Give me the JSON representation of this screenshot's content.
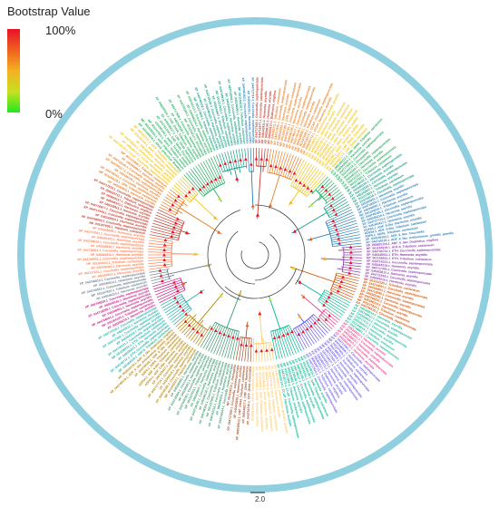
{
  "legend": {
    "title": "Bootstrap Value",
    "max_label": "100%",
    "min_label": "0%",
    "gradient_colors": [
      "#e8102a",
      "#f0601e",
      "#f5b020",
      "#c8e020",
      "#20e820"
    ]
  },
  "ring_color": "#8fcfdf",
  "scale_bar_label": "2.0",
  "clade_colors": [
    "#c0392b",
    "#e67e22",
    "#f1c40f",
    "#27ae60",
    "#16a085",
    "#2980b9",
    "#8e44ad",
    "#d35400",
    "#1abc9c",
    "#e84393",
    "#6c5ce7",
    "#00b894",
    "#fdcb6e",
    "#a0522d",
    "#3d9970",
    "#b8860b",
    "#20b2aa",
    "#c71585",
    "#708090",
    "#ff7f50"
  ],
  "visible_leaf_labels": [
    "XP_044717543.1_Coccinella_septempunctata",
    "XP_044716977.1_Coccinella_septempunctata",
    "XP_045343911.1_Harmonia_axyridis",
    "XP_045346101.1_Harmonia_axyridis",
    "XP_050503117.1_Diabrotica_virgifera",
    "XP_008193711.1_Tribolium_castaneum",
    "XP_044717910.1_Coccinella_septempunctata",
    "XP_045343915.1_Harmonia_axyridis",
    "NP_001164108.1_CPR_Tribolium_castaneum",
    "XP_044745161.1_Coccinella_septempunctata",
    "XP_045346105.1_Harmonia_axyridis",
    "XP_044748117.1_Coccinella_septempunctata",
    "XP_044718140.1_Coccinella_septempunctata",
    "XP_045343992.1_Harmonia_axyridis",
    "NP_001107848.1_Tribolium_castaneum",
    "XP_044718170.1_CCAP_Coccinella_septempunctata",
    "XP_045345714.1_CCAP_Harmonia_axyridis",
    "XP_044749551.1_Anthonomus_grandis_grandis",
    "XP_045343014.1_Harmonia_axyridis",
    "NP_001153720.1_AKH_Tribolium_castaneum",
    "NP_001153721.1_AKH_Tribolium_castaneum",
    "NP_001164016.1_AKH2_precursor_Bombyx",
    "NP_001034516.1_AKH_Tribolium_castaneum",
    "NP_001107915.1_AKH1_Tenebrio_molitor",
    "UXO96194.1_AKH1_Tenebrio_molitor",
    "XP_044751310.1_CRF_DH44_Coccinella",
    "XP_045346217.1_CRF_DH44_Harmonia",
    "XP_008195512.1_CRF_DH44_Tribolium_castaneum",
    "XP_045343926.1_Harmonia_axyridis",
    "XP_044717930.1_Coccinella_septempunctata",
    "NP_001104212.1_Drosophila",
    "XP_044745164.1_Coccinella_septempunctata",
    "XP_045346314.1_Harmonia_axyridis",
    "XP_044742113.1_Coccinella_septempunctata",
    "NP_001137903.1_Tribolium_castaneum",
    "XP_044748102.1_Coccinella_septempunctata",
    "XP_045346120.1_Harmonia_axyridis",
    "XP_044718182.1_Coccinella_septempunctata",
    "XP_045343947.1_Harmonia_axyridis",
    "NP_001107823.1_Tribolium_castaneum",
    "XP_044744918.1_Coccinella_septempunctata",
    "XP_045345931.1_Harmonia_axyridis",
    "XP_044718304.1_Coccinella_septempunctata",
    "XP_045346091.1_Harmonia_axyridis",
    "NP_001164210.1_Tribolium_castaneum",
    "XP_044746183.1_Coccinella_septempunctata",
    "XP_045345219.1_Harmonia_axyridis",
    "XP_044717714.1_Coccinella_septempunctata",
    "XP_045343417.1_Harmonia_axyridis",
    "ADF64.1_ADF_6-like_Harmonia_axyridis",
    "ADF64.1_ADF_6-like_Tribolium_castaneum",
    "ADF6.1_ADF6_Tribolium_castaneum",
    "XP_044749102.1_ADF_6_like_Coccinella",
    "XP_044749118.1_ADF_6_like_Anthonomus_grandis_grandis",
    "XP_050502119.1_ADF_6_like_Diabrotica_virgifera",
    "NP_001164319.1_ADF-6_Tribolium_castaneum",
    "XP_044749712.1_ETH_Coccinella_septempunctata",
    "XP_045345011.1_ETH_Harmonia_axyridis",
    "NP_001106912.1_ETH_Tribolium_castaneum",
    "XP_044716121.1_Coccinella_septempunctata",
    "XP_045344218.1_Harmonia_axyridis",
    "XP_044717342.1_Coccinella_septempunctata",
    "XP_045343612.1_Harmonia_axyridis"
  ],
  "bottom_leaf_labels": [
    "XP_044711918.1_Coccinella_septempunctata",
    "XP_045345210.1_Harmonia_axyridis",
    "NP_001164125.1_Tribolium_castaneum",
    "XP_044744001.1_Coccinella_septempunctata",
    "XP_045346901.1_Harmonia_axyridis",
    "XP_044718290.1_Coccinella_septempunctata",
    "XP_045343181.1_Harmonia_axyridis",
    "XP_044749220.1_Coccinella_septempunctata",
    "XP_045346313.1_Harmonia_axyridis",
    "NP_001107810.1_Tribolium_castaneum",
    "XP_044745510.1_Coccinella_septempunctata",
    "XP_045345514.1_Harmonia_axyridis",
    "XP_044748810.1_Coccinella_septempunctata",
    "XP_045343813.1_Harmonia_axyridis",
    "XP_044717211.1_Coccinella_septempunctata",
    "XP_045346410.1_Harmonia_axyridis",
    "NP_001164014.1_Tribolium_castaneum",
    "XP_044749901.1_Coccinella_septempunctata",
    "XP_045344910.1_Harmonia_axyridis",
    "XP_044718811.1_Coccinella_septempunctata",
    "XP_045345818.1_Harmonia_axyridis",
    "XP_044749610.1_Coccinella_septempunctata",
    "XP_045345102.1_Harmonia_axyridis",
    "XP_044717001.1_Coccinella_septempunctata",
    "XP_045346009.1_Harmonia_axyridis",
    "NP_001107005.1_Tribolium_castaneum",
    "XP_044748003.1_Coccinella_septempunctata",
    "XP_045343004.1_Harmonia_axyridis"
  ]
}
